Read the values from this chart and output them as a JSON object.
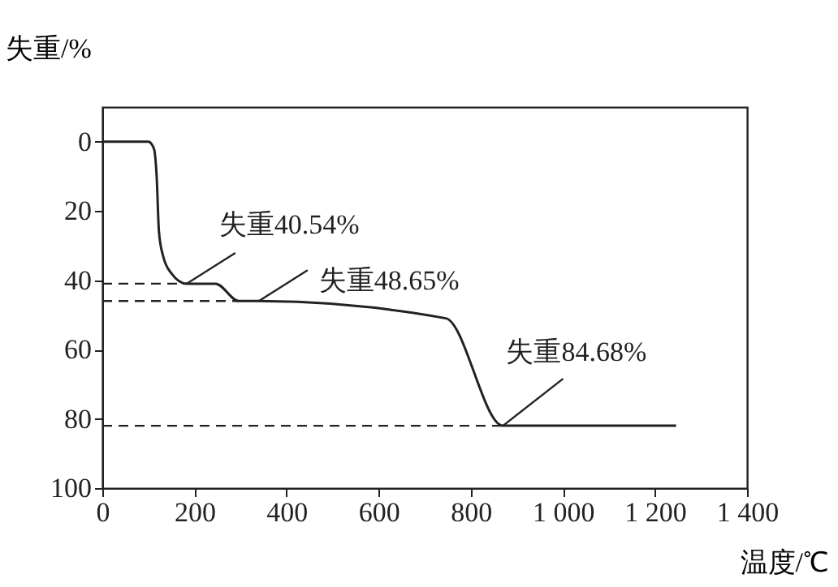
{
  "chart_data": {
    "type": "line",
    "xlabel": "温度/℃",
    "ylabel": "失重/%",
    "x": [
      0,
      100,
      112,
      118,
      123,
      132,
      150,
      183,
      246,
      296,
      340,
      746,
      870,
      1246
    ],
    "values": [
      0,
      0,
      2,
      10,
      26,
      33,
      38,
      41,
      41,
      46,
      46,
      51,
      82,
      82
    ],
    "color": "#222222",
    "line_style": "solid",
    "marker": "none",
    "grid": false,
    "xlim": [
      0,
      1400
    ],
    "ylim": [
      100,
      -10
    ],
    "xticks": [
      0,
      200,
      400,
      600,
      800,
      {
        "value": 1000,
        "label": "1 000"
      },
      {
        "value": 1200,
        "label": "1 200"
      },
      {
        "value": 1400,
        "label": "1 400"
      }
    ],
    "yticks": [
      0,
      20,
      40,
      60,
      80,
      100
    ],
    "ref_lines": [
      {
        "axis": "y",
        "value": 41,
        "line_style": "dashed",
        "color": "#222222"
      },
      {
        "axis": "y",
        "value": 46,
        "line_style": "dashed",
        "color": "#222222"
      },
      {
        "axis": "y",
        "value": 82,
        "line_style": "dashed",
        "color": "#222222"
      }
    ],
    "annotations": [
      {
        "text": "失重40.54%",
        "x": 183,
        "y": 41
      },
      {
        "text": "失重48.65%",
        "x": 340,
        "y": 46
      },
      {
        "text": "失重84.68%",
        "x": 870,
        "y": 82
      }
    ]
  }
}
